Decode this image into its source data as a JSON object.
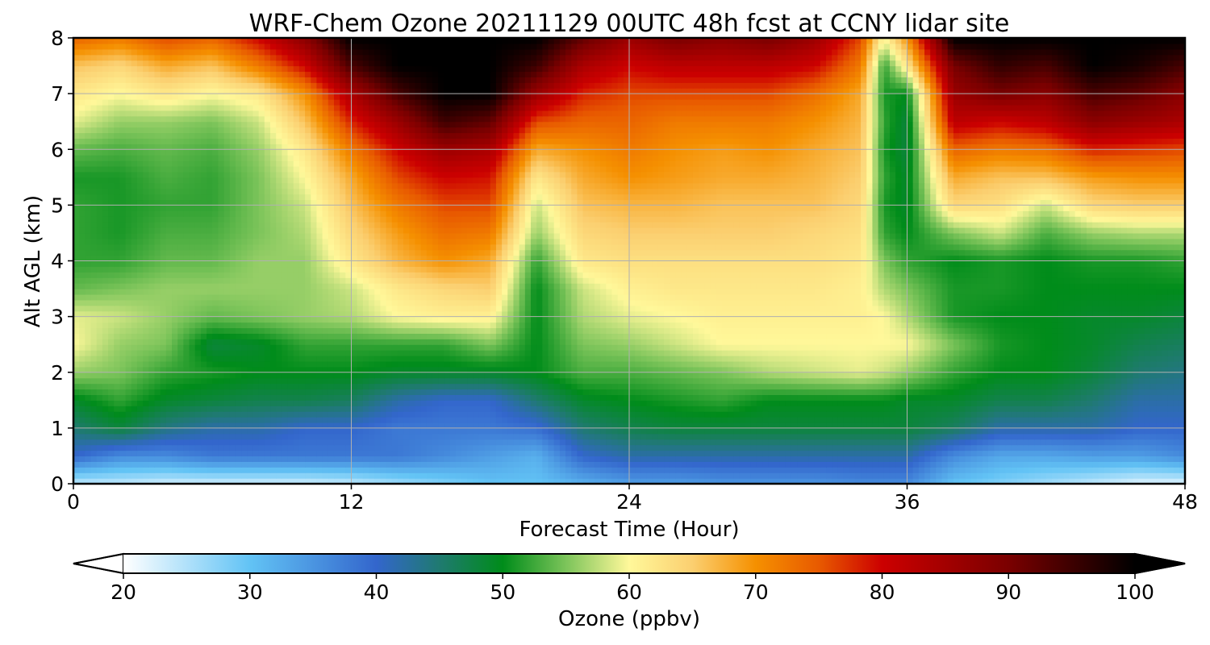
{
  "chart_data": {
    "type": "heatmap",
    "title": "WRF-Chem Ozone  20211129 00UTC 48h fcst at CCNY lidar site",
    "xlabel": "Forecast Time (Hour)",
    "ylabel": "Alt AGL (km)",
    "xlim": [
      0,
      48
    ],
    "ylim": [
      0,
      8
    ],
    "xticks": [
      "0",
      "12",
      "24",
      "36",
      "48"
    ],
    "yticks": [
      "0",
      "1",
      "2",
      "3",
      "4",
      "5",
      "6",
      "7",
      "8"
    ],
    "grid": true,
    "colorbar": {
      "label": "Ozone  (ppbv)",
      "range": [
        20,
        100
      ],
      "ticks": [
        "20",
        "30",
        "40",
        "50",
        "60",
        "70",
        "80",
        "90",
        "100"
      ],
      "extend": "both",
      "colors": [
        {
          "v": 20,
          "c": "#ffffff"
        },
        {
          "v": 30,
          "c": "#62c3f5"
        },
        {
          "v": 40,
          "c": "#3366cc"
        },
        {
          "v": 45,
          "c": "#1f7a70"
        },
        {
          "v": 50,
          "c": "#008c1a"
        },
        {
          "v": 55,
          "c": "#7cc45a"
        },
        {
          "v": 60,
          "c": "#fff89a"
        },
        {
          "v": 65,
          "c": "#fbcf70"
        },
        {
          "v": 70,
          "c": "#f59000"
        },
        {
          "v": 75,
          "c": "#e85a00"
        },
        {
          "v": 80,
          "c": "#cc0000"
        },
        {
          "v": 90,
          "c": "#7a0000"
        },
        {
          "v": 100,
          "c": "#000000"
        }
      ]
    },
    "x_hours": [
      0,
      2,
      4,
      6,
      8,
      10,
      12,
      14,
      16,
      18,
      20,
      22,
      24,
      26,
      28,
      30,
      32,
      34,
      35,
      36,
      38,
      40,
      42,
      44,
      46,
      48
    ],
    "z_km": [
      0,
      0.5,
      1,
      1.5,
      2,
      2.5,
      3,
      3.5,
      4,
      4.5,
      5,
      5.5,
      6,
      6.5,
      7,
      7.5,
      8
    ],
    "values_ppbv": [
      [
        24,
        24,
        23,
        23,
        23,
        23,
        24,
        26,
        28,
        30,
        30,
        32,
        34,
        34,
        35,
        35,
        35,
        36,
        36,
        36,
        30,
        28,
        26,
        24,
        22,
        22
      ],
      [
        40,
        36,
        36,
        38,
        38,
        38,
        38,
        38,
        36,
        34,
        32,
        40,
        42,
        42,
        42,
        42,
        42,
        42,
        42,
        42,
        36,
        33,
        33,
        34,
        34,
        36
      ],
      [
        45,
        48,
        44,
        42,
        42,
        40,
        40,
        38,
        38,
        38,
        39,
        45,
        47,
        48,
        48,
        48,
        48,
        48,
        48,
        48,
        46,
        42,
        42,
        42,
        40,
        40
      ],
      [
        49,
        52,
        49,
        48,
        47,
        47,
        46,
        42,
        40,
        40,
        45,
        49,
        50,
        51,
        52,
        50,
        50,
        50,
        50,
        49,
        49,
        47,
        47,
        45,
        42,
        42
      ],
      [
        56,
        55,
        52,
        51,
        50,
        50,
        50,
        49,
        49,
        49,
        50,
        53,
        53,
        54,
        55,
        57,
        58,
        59,
        58,
        56,
        52,
        50,
        50,
        48,
        45,
        44
      ],
      [
        60,
        56,
        55,
        48,
        49,
        52,
        52,
        52,
        52,
        55,
        50,
        55,
        56,
        58,
        60,
        60,
        60,
        60,
        60,
        60,
        55,
        51,
        50,
        49,
        47,
        46
      ],
      [
        59,
        58,
        56,
        54,
        55,
        56,
        57,
        60,
        61,
        61,
        50,
        57,
        59,
        60,
        61,
        61,
        61,
        61,
        60,
        57,
        51,
        50,
        50,
        49,
        49,
        48
      ],
      [
        54,
        55,
        56,
        56,
        56,
        56,
        58,
        62,
        64,
        65,
        50,
        58,
        61,
        62,
        62,
        62,
        62,
        61,
        57,
        55,
        51,
        51,
        50,
        50,
        50,
        50
      ],
      [
        52,
        52,
        54,
        54,
        56,
        56,
        62,
        67,
        70,
        68,
        52,
        62,
        63,
        63,
        63,
        63,
        63,
        62,
        55,
        52,
        50,
        51,
        50,
        51,
        51,
        52
      ],
      [
        52,
        51,
        53,
        53,
        55,
        57,
        64,
        69,
        73,
        72,
        56,
        64,
        65,
        65,
        65,
        65,
        64,
        63,
        52,
        50,
        55,
        58,
        53,
        56,
        57,
        57
      ],
      [
        52,
        51,
        52,
        52,
        55,
        58,
        66,
        72,
        76,
        76,
        58,
        66,
        67,
        67,
        66,
        66,
        66,
        64,
        51,
        49,
        64,
        63,
        58,
        64,
        65,
        65
      ],
      [
        51,
        51,
        53,
        52,
        55,
        60,
        68,
        76,
        80,
        79,
        62,
        68,
        70,
        69,
        68,
        68,
        67,
        65,
        52,
        49,
        68,
        66,
        66,
        69,
        70,
        70
      ],
      [
        54,
        53,
        54,
        53,
        56,
        62,
        72,
        80,
        86,
        84,
        68,
        70,
        72,
        70,
        69,
        70,
        68,
        66,
        51,
        48,
        74,
        72,
        73,
        78,
        77,
        76
      ],
      [
        59,
        56,
        56,
        55,
        58,
        66,
        78,
        86,
        95,
        92,
        76,
        74,
        74,
        72,
        72,
        72,
        70,
        67,
        52,
        48,
        82,
        80,
        82,
        88,
        86,
        84
      ],
      [
        62,
        60,
        62,
        60,
        62,
        70,
        84,
        94,
        100,
        100,
        86,
        78,
        76,
        76,
        76,
        76,
        73,
        68,
        51,
        50,
        86,
        90,
        88,
        94,
        92,
        88
      ],
      [
        66,
        64,
        68,
        66,
        72,
        80,
        94,
        100,
        100,
        100,
        95,
        84,
        80,
        82,
        82,
        82,
        80,
        72,
        52,
        62,
        90,
        96,
        94,
        100,
        98,
        94
      ],
      [
        74,
        72,
        76,
        74,
        80,
        88,
        100,
        100,
        100,
        100,
        100,
        92,
        86,
        90,
        88,
        90,
        86,
        76,
        60,
        70,
        100,
        100,
        100,
        100,
        100,
        100
      ]
    ]
  }
}
